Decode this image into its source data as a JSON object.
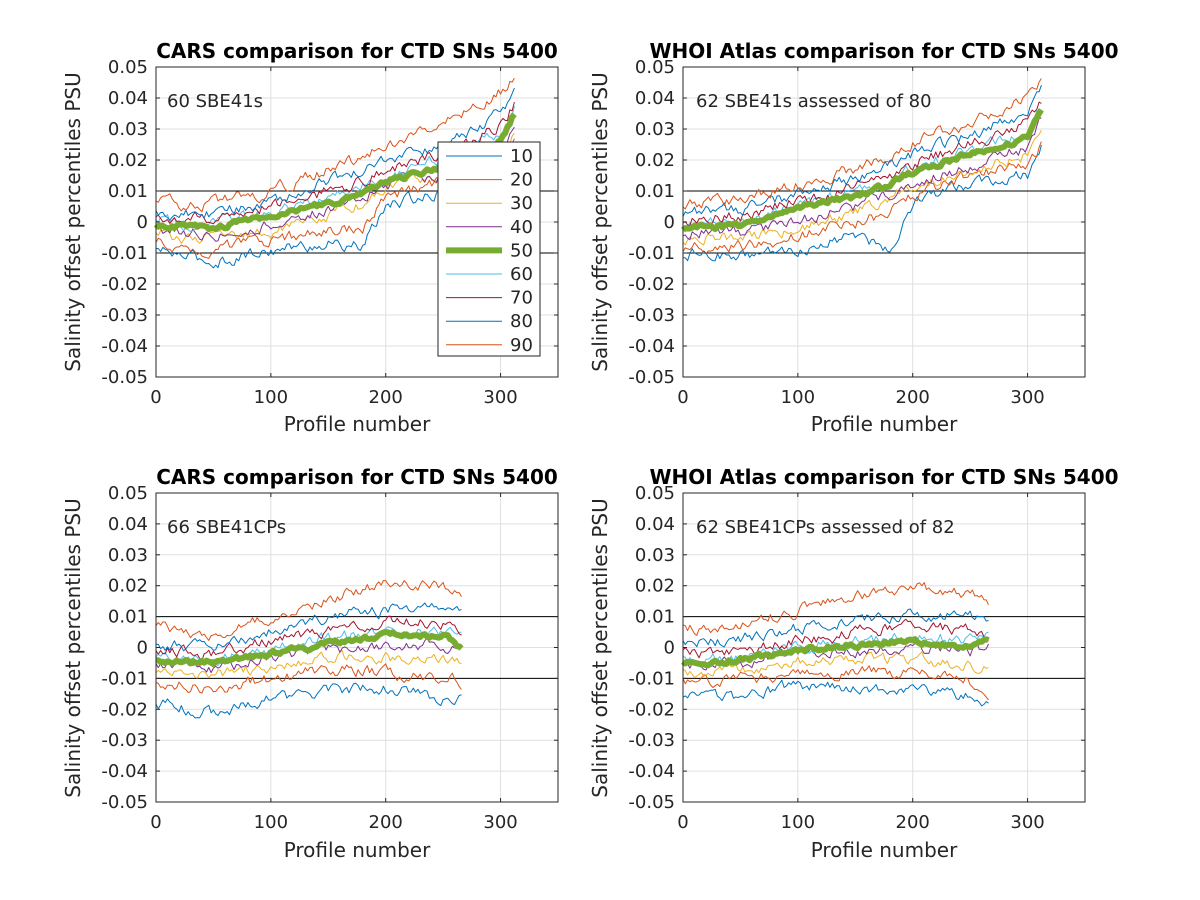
{
  "figure": {
    "legend_entries": [
      "10",
      "20",
      "30",
      "40",
      "50",
      "60",
      "70",
      "80",
      "90"
    ],
    "series_colors": [
      "#0072bd",
      "#d95319",
      "#edb120",
      "#7e2f8e",
      "#77ac30",
      "#4dbeee",
      "#a2142f",
      "#0072bd",
      "#d95319"
    ]
  },
  "chart_data": [
    {
      "type": "line",
      "title": "CARS comparison for CTD SNs 5400",
      "annotation": "60 SBE41s",
      "xlabel": "Profile number",
      "ylabel": "Salinity offset percentiles PSU",
      "xlim": [
        0,
        350
      ],
      "ylim": [
        -0.05,
        0.05
      ],
      "xticks": [
        0,
        100,
        200,
        300
      ],
      "yticks": [
        "-0.05",
        "-0.04",
        "-0.03",
        "-0.02",
        "-0.01",
        "0",
        "0.01",
        "0.02",
        "0.03",
        "0.04",
        "0.05"
      ],
      "reference_lines_y": [
        0.01,
        -0.01
      ],
      "grid": true,
      "legend": "inside right",
      "n_profiles": 313,
      "series": [
        {
          "name": "10",
          "x": [
            0,
            50,
            100,
            150,
            180,
            200,
            250,
            300,
            313
          ],
          "values": [
            -0.009,
            -0.013,
            -0.009,
            -0.007,
            -0.008,
            0.005,
            0.01,
            0.016,
            0.025
          ]
        },
        {
          "name": "20",
          "x": [
            0,
            50,
            100,
            150,
            180,
            200,
            250,
            300,
            313
          ],
          "values": [
            -0.007,
            -0.009,
            -0.006,
            -0.003,
            -0.002,
            0.008,
            0.013,
            0.02,
            0.028
          ]
        },
        {
          "name": "30",
          "x": [
            0,
            50,
            100,
            150,
            180,
            200,
            250,
            300,
            313
          ],
          "values": [
            -0.004,
            -0.006,
            -0.003,
            0.002,
            0.006,
            0.011,
            0.015,
            0.022,
            0.03
          ]
        },
        {
          "name": "40",
          "x": [
            0,
            50,
            100,
            150,
            180,
            200,
            250,
            300,
            313
          ],
          "values": [
            -0.002,
            -0.004,
            -0.001,
            0.004,
            0.008,
            0.012,
            0.016,
            0.024,
            0.033
          ]
        },
        {
          "name": "50",
          "x": [
            0,
            50,
            100,
            150,
            180,
            200,
            250,
            300,
            313
          ],
          "values": [
            -0.001,
            -0.002,
            0.002,
            0.006,
            0.009,
            0.013,
            0.018,
            0.026,
            0.036
          ]
        },
        {
          "name": "60",
          "x": [
            0,
            50,
            100,
            150,
            180,
            200,
            250,
            300,
            313
          ],
          "values": [
            0,
            -0.001,
            0.003,
            0.008,
            0.011,
            0.015,
            0.02,
            0.028,
            0.037
          ]
        },
        {
          "name": "70",
          "x": [
            0,
            50,
            100,
            150,
            180,
            200,
            250,
            300,
            313
          ],
          "values": [
            0.001,
            0.001,
            0.005,
            0.01,
            0.013,
            0.017,
            0.022,
            0.031,
            0.039
          ]
        },
        {
          "name": "80",
          "x": [
            0,
            50,
            100,
            150,
            180,
            200,
            250,
            300,
            313
          ],
          "values": [
            0.003,
            0.003,
            0.007,
            0.013,
            0.016,
            0.02,
            0.025,
            0.035,
            0.043
          ]
        },
        {
          "name": "90",
          "x": [
            0,
            50,
            100,
            150,
            180,
            200,
            250,
            300,
            313
          ],
          "values": [
            0.006,
            0.006,
            0.01,
            0.017,
            0.021,
            0.025,
            0.032,
            0.042,
            0.047
          ]
        }
      ]
    },
    {
      "type": "line",
      "title": "WHOI Atlas comparison for CTD SNs 5400",
      "annotation": "62 SBE41s assessed of 80",
      "xlabel": "Profile number",
      "ylabel": "Salinity offset percentiles PSU",
      "xlim": [
        0,
        350
      ],
      "ylim": [
        -0.05,
        0.05
      ],
      "xticks": [
        0,
        100,
        200,
        300
      ],
      "yticks": [
        "-0.05",
        "-0.04",
        "-0.03",
        "-0.02",
        "-0.01",
        "0",
        "0.01",
        "0.02",
        "0.03",
        "0.04",
        "0.05"
      ],
      "reference_lines_y": [
        0.01,
        -0.01
      ],
      "grid": true,
      "n_profiles": 313,
      "series": [
        {
          "name": "10",
          "x": [
            0,
            50,
            100,
            150,
            180,
            200,
            250,
            300,
            313
          ],
          "values": [
            -0.01,
            -0.011,
            -0.009,
            -0.004,
            -0.009,
            0.006,
            0.013,
            0.015,
            0.025
          ]
        },
        {
          "name": "20",
          "x": [
            0,
            50,
            100,
            150,
            180,
            200,
            250,
            300,
            313
          ],
          "values": [
            -0.008,
            -0.008,
            -0.005,
            0,
            0.003,
            0.009,
            0.015,
            0.019,
            0.026
          ]
        },
        {
          "name": "30",
          "x": [
            0,
            50,
            100,
            150,
            180,
            200,
            250,
            300,
            313
          ],
          "values": [
            -0.005,
            -0.005,
            -0.002,
            0.003,
            0.007,
            0.012,
            0.016,
            0.022,
            0.03
          ]
        },
        {
          "name": "40",
          "x": [
            0,
            50,
            100,
            150,
            180,
            200,
            250,
            300,
            313
          ],
          "values": [
            -0.003,
            -0.003,
            0,
            0.005,
            0.009,
            0.013,
            0.018,
            0.024,
            0.033
          ]
        },
        {
          "name": "50",
          "x": [
            0,
            50,
            100,
            150,
            180,
            200,
            250,
            300,
            313
          ],
          "values": [
            -0.002,
            -0.001,
            0.005,
            0.008,
            0.012,
            0.016,
            0.022,
            0.027,
            0.037
          ]
        },
        {
          "name": "60",
          "x": [
            0,
            50,
            100,
            150,
            180,
            200,
            250,
            300,
            313
          ],
          "values": [
            -0.001,
            0,
            0.005,
            0.009,
            0.013,
            0.017,
            0.023,
            0.029,
            0.038
          ]
        },
        {
          "name": "70",
          "x": [
            0,
            50,
            100,
            150,
            180,
            200,
            250,
            300,
            313
          ],
          "values": [
            0.001,
            0.002,
            0.007,
            0.011,
            0.015,
            0.019,
            0.025,
            0.032,
            0.04
          ]
        },
        {
          "name": "80",
          "x": [
            0,
            50,
            100,
            150,
            180,
            200,
            250,
            300,
            313
          ],
          "values": [
            0.003,
            0.004,
            0.009,
            0.014,
            0.018,
            0.022,
            0.028,
            0.036,
            0.043
          ]
        },
        {
          "name": "90",
          "x": [
            0,
            50,
            100,
            150,
            180,
            200,
            250,
            300,
            313
          ],
          "values": [
            0.006,
            0.007,
            0.012,
            0.017,
            0.021,
            0.026,
            0.032,
            0.04,
            0.045
          ]
        }
      ]
    },
    {
      "type": "line",
      "title": "CARS comparison for CTD SNs 5400",
      "annotation": "66 SBE41CPs",
      "xlabel": "Profile number",
      "ylabel": "Salinity offset percentiles PSU",
      "xlim": [
        0,
        350
      ],
      "ylim": [
        -0.05,
        0.05
      ],
      "xticks": [
        0,
        100,
        200,
        300
      ],
      "yticks": [
        "-0.05",
        "-0.04",
        "-0.03",
        "-0.02",
        "-0.01",
        "0",
        "0.01",
        "0.02",
        "0.03",
        "0.04",
        "0.05"
      ],
      "reference_lines_y": [
        0.01,
        -0.01
      ],
      "grid": true,
      "n_profiles": 266,
      "series": [
        {
          "name": "10",
          "x": [
            0,
            50,
            100,
            150,
            200,
            250,
            266
          ],
          "values": [
            -0.018,
            -0.021,
            -0.017,
            -0.014,
            -0.013,
            -0.017,
            -0.016
          ]
        },
        {
          "name": "20",
          "x": [
            0,
            50,
            100,
            150,
            200,
            250,
            266
          ],
          "values": [
            -0.011,
            -0.013,
            -0.01,
            -0.007,
            -0.008,
            -0.01,
            -0.011
          ]
        },
        {
          "name": "30",
          "x": [
            0,
            50,
            100,
            150,
            200,
            250,
            266
          ],
          "values": [
            -0.008,
            -0.009,
            -0.006,
            -0.003,
            -0.003,
            -0.004,
            -0.005
          ]
        },
        {
          "name": "40",
          "x": [
            0,
            50,
            100,
            150,
            200,
            250,
            266
          ],
          "values": [
            -0.005,
            -0.007,
            -0.003,
            -0.001,
            0,
            0.001,
            0
          ]
        },
        {
          "name": "50",
          "x": [
            0,
            50,
            100,
            150,
            200,
            250,
            266
          ],
          "values": [
            -0.004,
            -0.005,
            -0.002,
            0.001,
            0.004,
            0.004,
            0
          ]
        },
        {
          "name": "60",
          "x": [
            0,
            50,
            100,
            150,
            200,
            250,
            266
          ],
          "values": [
            -0.003,
            -0.004,
            -0.001,
            0.003,
            0.005,
            0.005,
            0.003
          ]
        },
        {
          "name": "70",
          "x": [
            0,
            50,
            100,
            150,
            200,
            250,
            266
          ],
          "values": [
            -0.001,
            -0.002,
            0.002,
            0.006,
            0.008,
            0.008,
            0.006
          ]
        },
        {
          "name": "80",
          "x": [
            0,
            50,
            100,
            150,
            200,
            250,
            266
          ],
          "values": [
            0.001,
            0,
            0.005,
            0.01,
            0.012,
            0.014,
            0.012
          ]
        },
        {
          "name": "90",
          "x": [
            0,
            50,
            100,
            150,
            200,
            250,
            266
          ],
          "values": [
            0.007,
            0.004,
            0.01,
            0.016,
            0.021,
            0.02,
            0.018
          ]
        }
      ]
    },
    {
      "type": "line",
      "title": "WHOI Atlas comparison for CTD SNs 5400",
      "annotation": "62 SBE41CPs assessed of 82",
      "xlabel": "Profile number",
      "ylabel": "Salinity offset percentiles PSU",
      "xlim": [
        0,
        350
      ],
      "ylim": [
        -0.05,
        0.05
      ],
      "xticks": [
        0,
        100,
        200,
        300
      ],
      "yticks": [
        "-0.05",
        "-0.04",
        "-0.03",
        "-0.02",
        "-0.01",
        "0",
        "0.01",
        "0.02",
        "0.03",
        "0.04",
        "0.05"
      ],
      "reference_lines_y": [
        0.01,
        -0.01
      ],
      "grid": true,
      "n_profiles": 266,
      "series": [
        {
          "name": "10",
          "x": [
            0,
            50,
            100,
            150,
            200,
            250,
            266
          ],
          "values": [
            -0.017,
            -0.016,
            -0.012,
            -0.013,
            -0.013,
            -0.016,
            -0.019
          ]
        },
        {
          "name": "20",
          "x": [
            0,
            50,
            100,
            150,
            200,
            250,
            266
          ],
          "values": [
            -0.011,
            -0.01,
            -0.009,
            -0.008,
            -0.008,
            -0.011,
            -0.014
          ]
        },
        {
          "name": "30",
          "x": [
            0,
            50,
            100,
            150,
            200,
            250,
            266
          ],
          "values": [
            -0.008,
            -0.007,
            -0.005,
            -0.004,
            -0.004,
            -0.006,
            -0.006
          ]
        },
        {
          "name": "40",
          "x": [
            0,
            50,
            100,
            150,
            200,
            250,
            266
          ],
          "values": [
            -0.006,
            -0.005,
            -0.002,
            -0.001,
            0,
            -0.001,
            0
          ]
        },
        {
          "name": "50",
          "x": [
            0,
            50,
            100,
            150,
            200,
            250,
            266
          ],
          "values": [
            -0.005,
            -0.004,
            -0.001,
            0.001,
            0.002,
            0,
            0.002
          ]
        },
        {
          "name": "60",
          "x": [
            0,
            50,
            100,
            150,
            200,
            250,
            266
          ],
          "values": [
            -0.004,
            -0.003,
            0,
            0.002,
            0.004,
            0.002,
            0.003
          ]
        },
        {
          "name": "70",
          "x": [
            0,
            50,
            100,
            150,
            200,
            250,
            266
          ],
          "values": [
            -0.002,
            -0.001,
            0.002,
            0.005,
            0.007,
            0.006,
            0.004
          ]
        },
        {
          "name": "80",
          "x": [
            0,
            50,
            100,
            150,
            200,
            250,
            266
          ],
          "values": [
            0.001,
            0.003,
            0.006,
            0.009,
            0.011,
            0.01,
            0.008
          ]
        },
        {
          "name": "90",
          "x": [
            0,
            50,
            100,
            150,
            200,
            250,
            266
          ],
          "values": [
            0.006,
            0.007,
            0.012,
            0.017,
            0.02,
            0.017,
            0.015
          ]
        }
      ]
    }
  ]
}
